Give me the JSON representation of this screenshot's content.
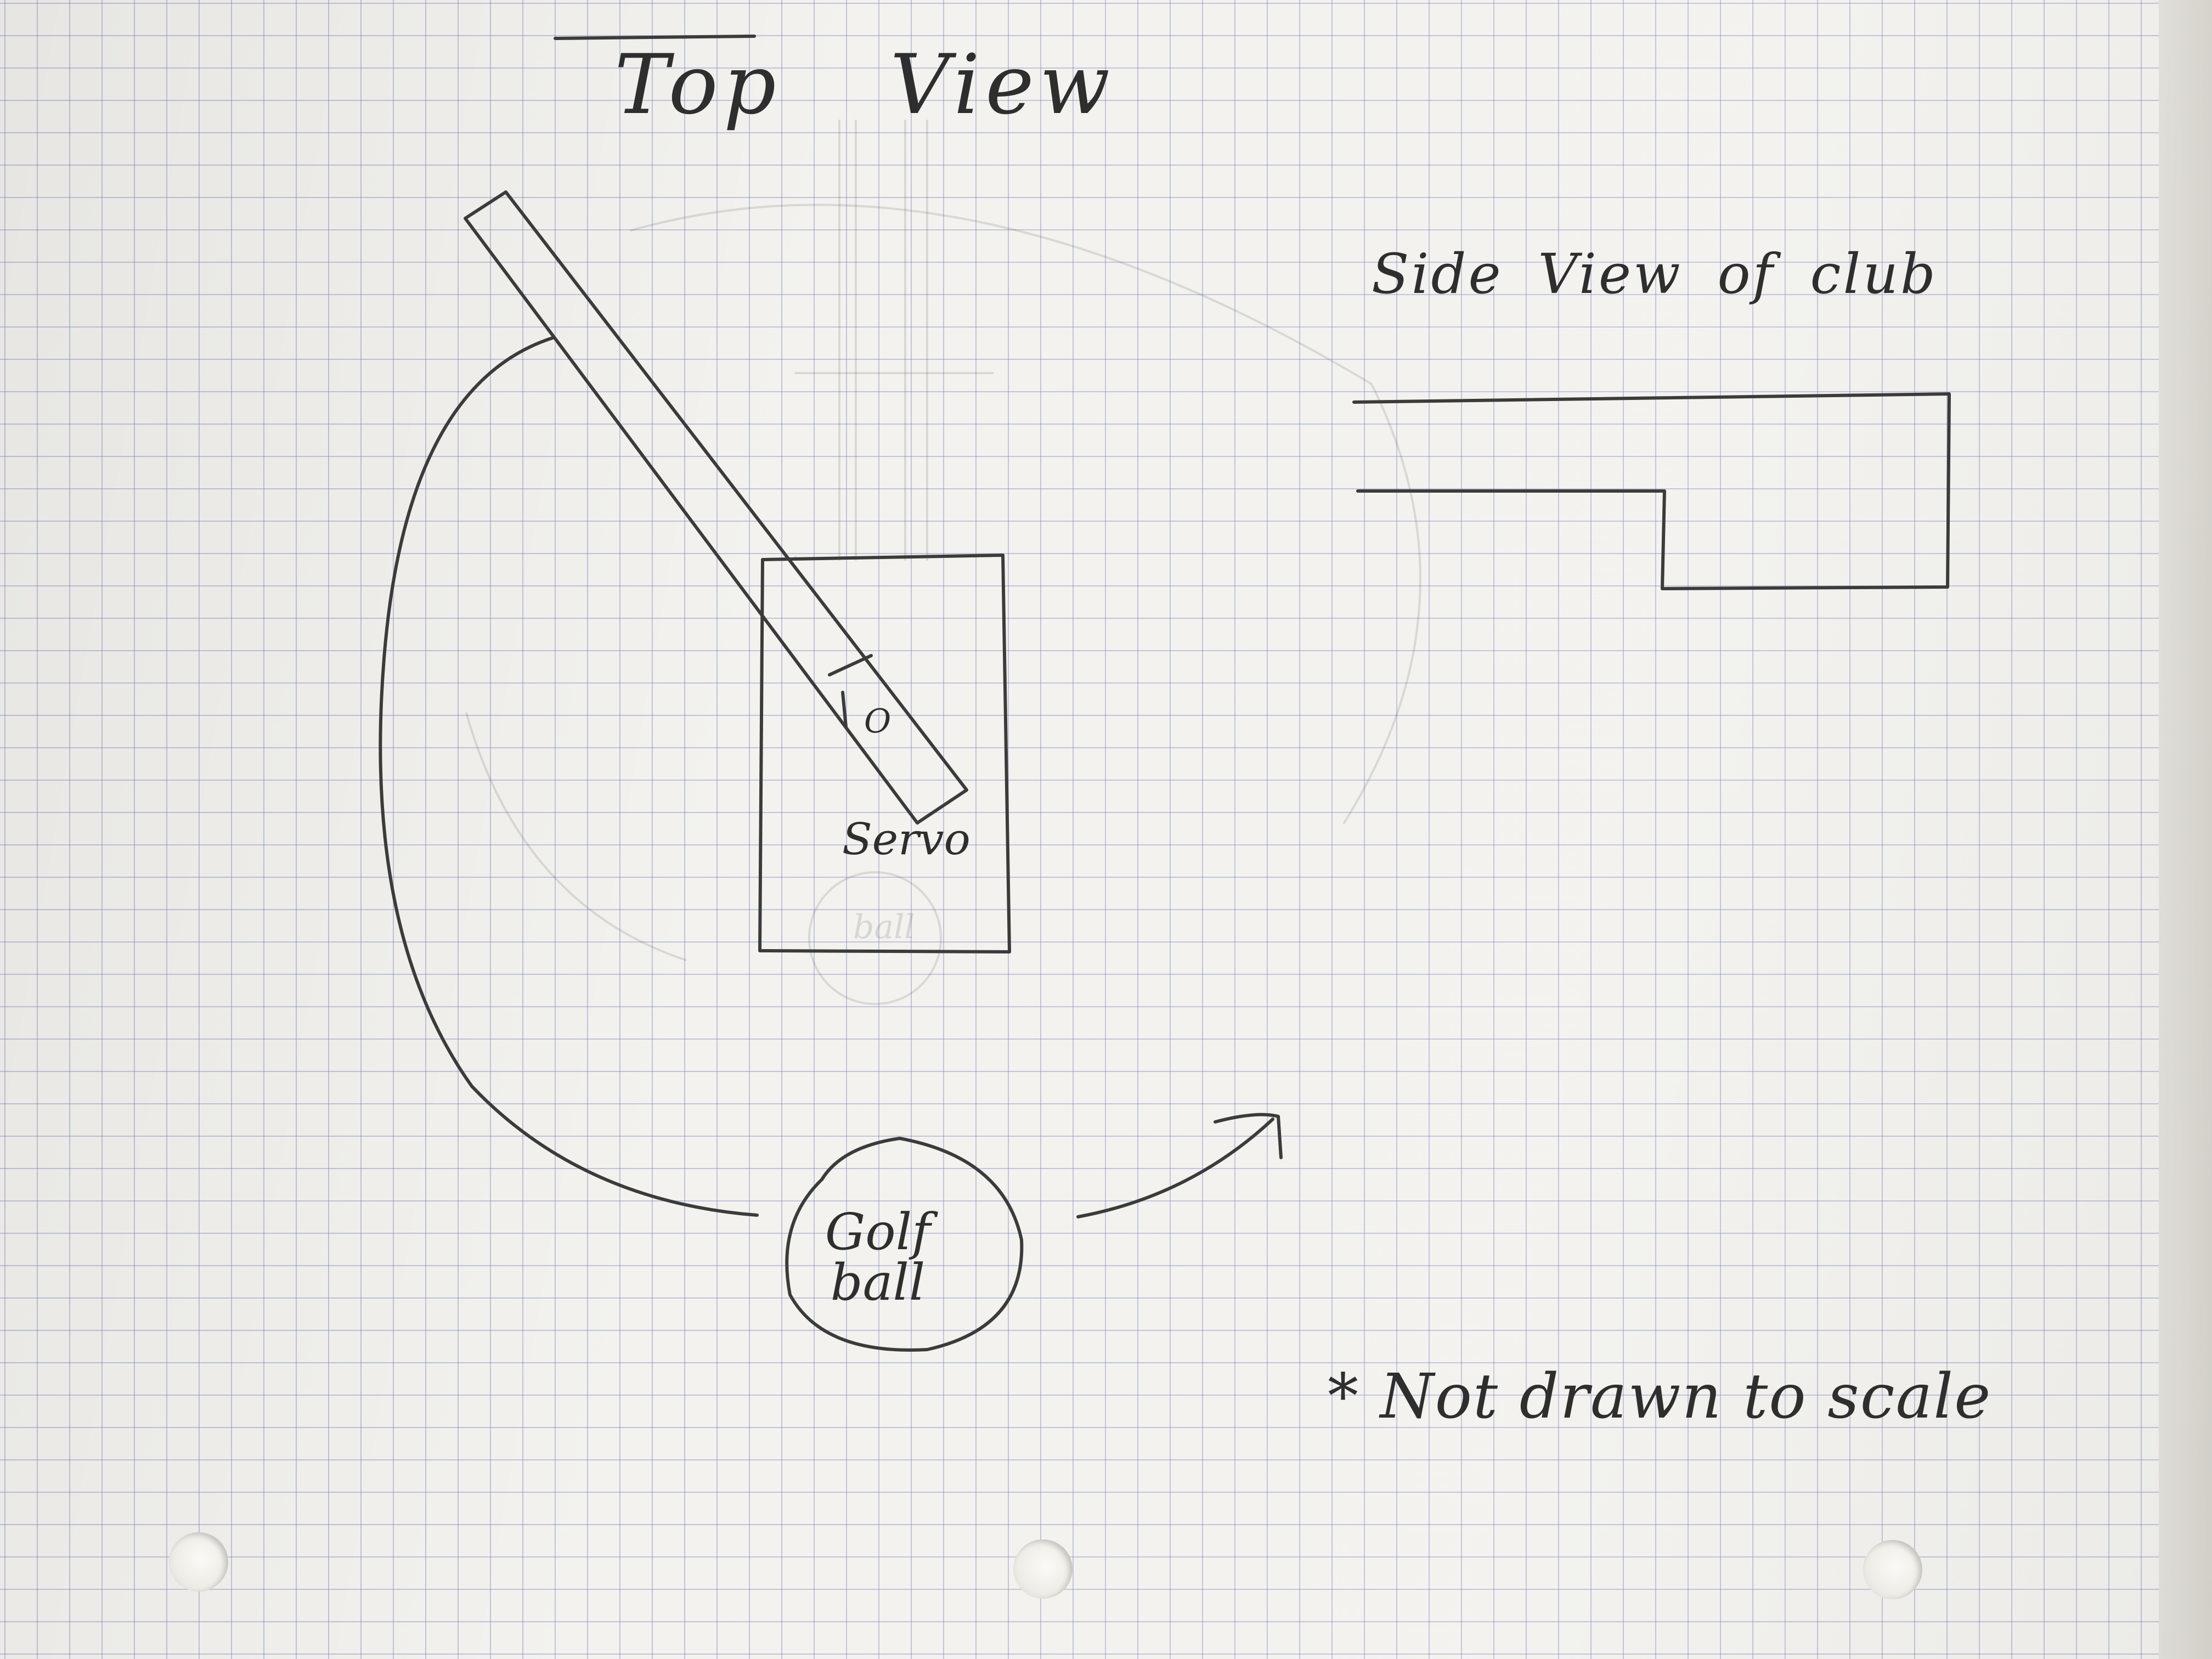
{
  "labels": {
    "title_top_view": "Top View",
    "title_side_view": "Side View of club",
    "servo": "Servo",
    "pivot": "O",
    "golf_ball": "Golf ball",
    "faint_ball": "ball",
    "scale_note": "* Not drawn to scale"
  },
  "icons": {
    "ball_direction": "arrow-up-right-icon"
  }
}
